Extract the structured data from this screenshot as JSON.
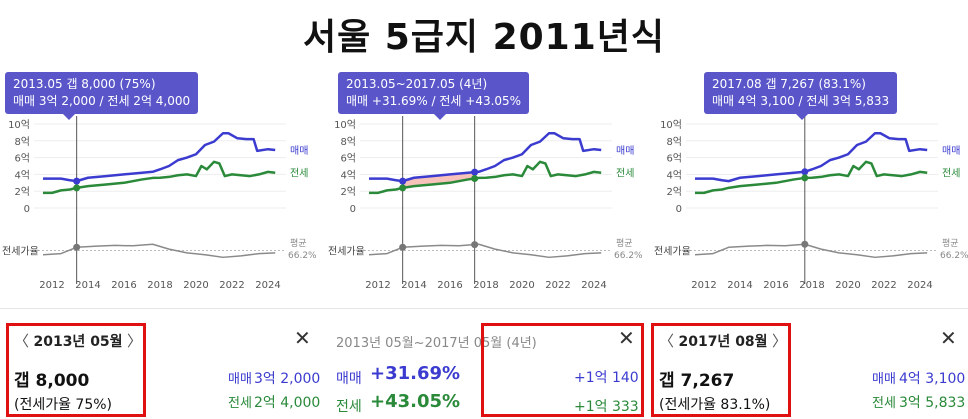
{
  "title": "서울 5급지 2011년식",
  "charts": [
    {
      "tooltip_line1": "2013.05  갭 8,000 (75%)",
      "tooltip_line2": "매매 3억 2,000 / 전세 2억 4,000",
      "marker_years": [
        2013.37
      ],
      "range_fill": false
    },
    {
      "tooltip_line1": "2013.05~2017.05 (4년)",
      "tooltip_line2": "매매 +31.69%  /  전세 +43.05%",
      "marker_years": [
        2013.37,
        2017.37
      ],
      "range_fill": true
    },
    {
      "tooltip_line1": "2017.08  갭 7,267 (83.1%)",
      "tooltip_line2": "매매 4억 3,100 / 전세 3억 5,833",
      "marker_years": [
        2017.6
      ],
      "range_fill": false
    }
  ],
  "axis": {
    "y_ticks": [
      "10억",
      "8억",
      "6억",
      "4억",
      "2억",
      "0"
    ],
    "x_ticks": [
      "2012",
      "2014",
      "2016",
      "2018",
      "2020",
      "2022",
      "2024"
    ],
    "ratio_label": "전세가율",
    "avg_label": "평균",
    "avg_value": "66.2%",
    "sale_label": "매매",
    "jeonse_label": "전세"
  },
  "chart_data": {
    "type": "line",
    "xlabel": "",
    "ylabel": "",
    "ylim": [
      0,
      10
    ],
    "x_range": [
      2011,
      2025
    ],
    "series": [
      {
        "name": "매매",
        "color": "#3b3bd0",
        "x": [
          2011.5,
          2012.5,
          2013.0,
          2013.37,
          2014.0,
          2015.0,
          2016.0,
          2017.0,
          2017.6,
          2018.0,
          2018.5,
          2019.0,
          2019.5,
          2020.0,
          2020.5,
          2021.0,
          2021.5,
          2021.8,
          2022.3,
          2022.8,
          2023.2,
          2023.4,
          2024.0,
          2024.4
        ],
        "values": [
          3.5,
          3.5,
          3.3,
          3.2,
          3.6,
          3.8,
          4.0,
          4.2,
          4.31,
          4.6,
          5.0,
          5.7,
          6.0,
          6.4,
          7.5,
          7.9,
          8.9,
          8.9,
          8.3,
          8.2,
          8.2,
          6.8,
          7.0,
          6.9
        ]
      },
      {
        "name": "전세",
        "color": "#2a8a3a",
        "x": [
          2011.5,
          2012.0,
          2012.5,
          2013.0,
          2013.37,
          2014.0,
          2015.0,
          2016.0,
          2017.0,
          2017.6,
          2018.0,
          2018.5,
          2019.0,
          2019.5,
          2020.0,
          2020.3,
          2020.6,
          2021.0,
          2021.3,
          2021.6,
          2022.0,
          2022.5,
          2023.0,
          2023.5,
          2024.0,
          2024.4
        ],
        "values": [
          1.8,
          1.8,
          2.1,
          2.2,
          2.4,
          2.6,
          2.8,
          3.0,
          3.4,
          3.58,
          3.6,
          3.7,
          3.9,
          4.0,
          3.8,
          5.0,
          4.6,
          5.5,
          5.3,
          3.8,
          4.0,
          3.9,
          3.8,
          4.0,
          4.3,
          4.2
        ]
      },
      {
        "name": "전세가율",
        "color": "#8a8a8a",
        "x": [
          2011.5,
          2012.5,
          2013.37,
          2014.5,
          2015.5,
          2016.5,
          2017.6,
          2018.5,
          2019.5,
          2020.5,
          2021.5,
          2022.5,
          2023.5,
          2024.4
        ],
        "values": [
          55,
          58,
          75,
          78,
          80,
          79,
          83.1,
          70,
          60,
          55,
          48,
          52,
          58,
          60
        ]
      }
    ]
  },
  "panels": [
    {
      "date": "2013년 05월",
      "gap": "갭 8,000",
      "ratio": "(전세가율 75%)",
      "sale_label": "매매",
      "sale_value": "3억 2,000",
      "jeonse_label": "전세",
      "jeonse_value": "2억 4,000"
    },
    {
      "range": "2013년 05월~2017년 05월 (4년)",
      "sale_label": "매매",
      "sale_pct": "+31.69%",
      "sale_amount": "+1억 140",
      "jeonse_label": "전세",
      "jeonse_pct": "+43.05%",
      "jeonse_amount": "+1억 333"
    },
    {
      "date": "2017년 08월",
      "gap": "갭 7,267",
      "ratio": "(전세가율 83.1%)",
      "sale_label": "매매",
      "sale_value": "4억 3,100",
      "jeonse_label": "전세",
      "jeonse_value": "3억 5,833"
    }
  ],
  "icons": {
    "close": "close-icon",
    "prev": "chevron-left-icon",
    "next": "chevron-right-icon"
  }
}
